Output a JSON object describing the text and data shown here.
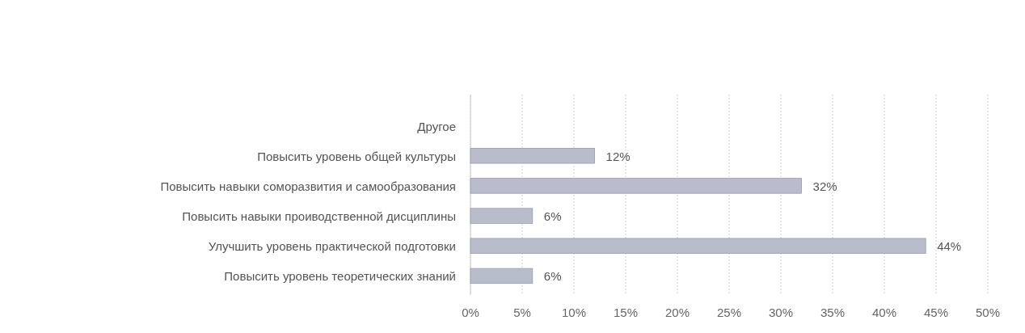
{
  "chart_data": {
    "type": "bar",
    "orientation": "horizontal",
    "categories": [
      "Другое",
      "Повысить уровень общей культуры",
      "Повысить навыки соморазвития и самообразования",
      "Повысить навыки проиводственной дисциплины",
      "Улучшить уровень практической подготовки",
      "Повысить уровень теоретических знаний"
    ],
    "values": [
      null,
      12,
      32,
      6,
      44,
      6
    ],
    "value_labels": [
      null,
      "12%",
      "32%",
      "6%",
      "44%",
      "6%"
    ],
    "color": "#b9bccb",
    "xlim": [
      0,
      50
    ],
    "xticks": [
      {
        "value": 0,
        "label": "0%"
      },
      {
        "value": 5,
        "label": "5%"
      },
      {
        "value": 10,
        "label": "10%"
      },
      {
        "value": 15,
        "label": "15%"
      },
      {
        "value": 20,
        "label": "20%"
      },
      {
        "value": 25,
        "label": "25%"
      },
      {
        "value": 30,
        "label": "30%"
      },
      {
        "value": 35,
        "label": "35%"
      },
      {
        "value": 40,
        "label": "40%"
      },
      {
        "value": 45,
        "label": "45%"
      },
      {
        "value": 50,
        "label": "50%"
      }
    ],
    "grid": "x"
  }
}
